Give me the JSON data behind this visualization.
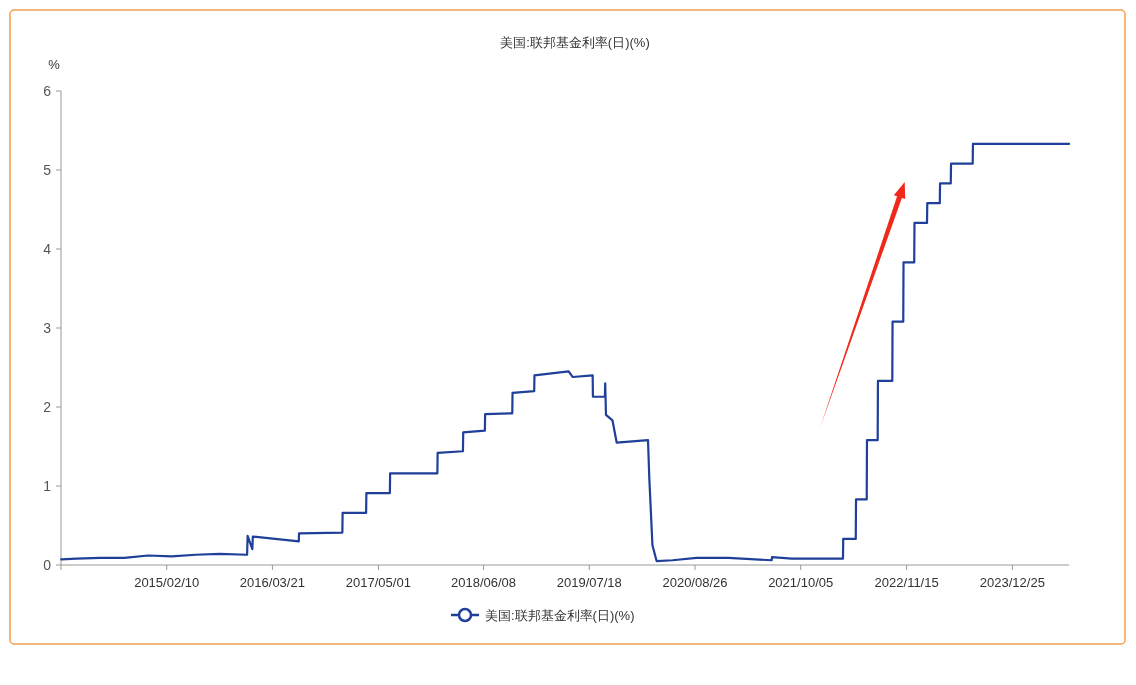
{
  "chart_data": {
    "type": "line",
    "title": "美国:联邦基金利率(日)(%)",
    "ylabel": "%",
    "x": [
      "2014-01-02",
      "2014-03-01",
      "2014-06-01",
      "2014-09-01",
      "2014-12-01",
      "2015-03-01",
      "2015-06-01",
      "2015-09-01",
      "2015-12-15",
      "2015-12-17",
      "2016-01-04",
      "2016-01-06",
      "2016-06-30",
      "2016-07-01",
      "2016-12-14",
      "2016-12-15",
      "2017-03-15",
      "2017-03-16",
      "2017-06-14",
      "2017-06-15",
      "2017-12-13",
      "2017-12-14",
      "2018-03-21",
      "2018-03-22",
      "2018-06-13",
      "2018-06-14",
      "2018-09-26",
      "2018-09-27",
      "2018-12-19",
      "2018-12-20",
      "2019-04-30",
      "2019-05-15",
      "2019-07-31",
      "2019-08-01",
      "2019-09-16",
      "2019-09-17",
      "2019-09-20",
      "2019-10-15",
      "2019-10-31",
      "2020-02-28",
      "2020-03-04",
      "2020-03-16",
      "2020-04-01",
      "2020-06-01",
      "2020-09-01",
      "2021-01-01",
      "2021-06-16",
      "2021-06-17",
      "2021-09-01",
      "2022-03-16",
      "2022-03-17",
      "2022-05-04",
      "2022-05-05",
      "2022-06-15",
      "2022-06-16",
      "2022-07-27",
      "2022-07-28",
      "2022-09-21",
      "2022-09-22",
      "2022-11-02",
      "2022-11-03",
      "2022-12-14",
      "2022-12-15",
      "2023-02-01",
      "2023-02-02",
      "2023-03-22",
      "2023-03-23",
      "2023-05-03",
      "2023-05-04",
      "2023-07-26",
      "2023-07-27",
      "2024-07-29"
    ],
    "series": [
      {
        "name": "美国:联邦基金利率(日)(%)",
        "color": "#1f3f99",
        "values": [
          0.07,
          0.08,
          0.09,
          0.09,
          0.12,
          0.11,
          0.13,
          0.14,
          0.13,
          0.37,
          0.2,
          0.36,
          0.3,
          0.4,
          0.41,
          0.66,
          0.66,
          0.91,
          0.91,
          1.16,
          1.16,
          1.42,
          1.44,
          1.68,
          1.7,
          1.91,
          1.92,
          2.18,
          2.2,
          2.4,
          2.45,
          2.38,
          2.4,
          2.13,
          2.13,
          2.3,
          1.9,
          1.83,
          1.55,
          1.58,
          1.1,
          0.25,
          0.05,
          0.06,
          0.09,
          0.09,
          0.06,
          0.1,
          0.08,
          0.08,
          0.33,
          0.33,
          0.83,
          0.83,
          1.58,
          1.58,
          2.33,
          2.33,
          3.08,
          3.08,
          3.83,
          3.83,
          4.33,
          4.33,
          4.58,
          4.58,
          4.83,
          4.83,
          5.08,
          5.08,
          5.33,
          5.33
        ]
      }
    ],
    "xlim": [
      "2014-01-01",
      "2024-07-29"
    ],
    "xticks": [
      {
        "value": "2014-01-01",
        "label": null
      },
      {
        "value": "2015-02-10",
        "label": "2015/02/10"
      },
      {
        "value": "2016-03-21",
        "label": "2016/03/21"
      },
      {
        "value": "2017-05-01",
        "label": "2017/05/01"
      },
      {
        "value": "2018-06-08",
        "label": "2018/06/08"
      },
      {
        "value": "2019-07-18",
        "label": "2019/07/18"
      },
      {
        "value": "2020-08-26",
        "label": "2020/08/26"
      },
      {
        "value": "2021-10-05",
        "label": "2021/10/05"
      },
      {
        "value": "2022-11-15",
        "label": "2022/11/15"
      },
      {
        "value": "2023-12-25",
        "label": "2023/12/25"
      }
    ],
    "ylim": [
      0,
      6
    ],
    "yticks": [
      0,
      1,
      2,
      3,
      4,
      5,
      6
    ],
    "legend": "bottom"
  }
}
